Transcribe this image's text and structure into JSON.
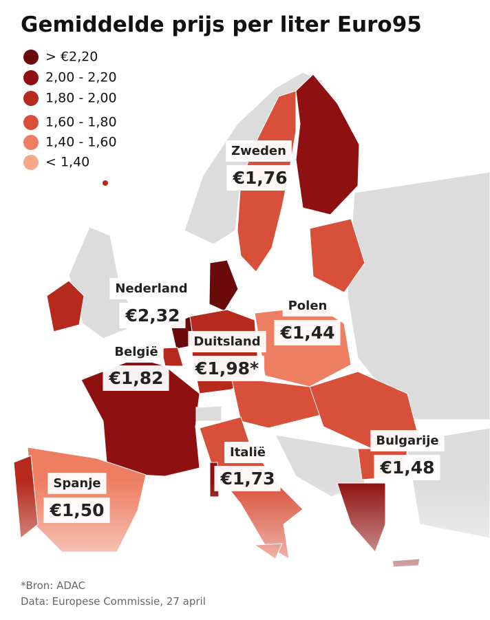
{
  "header": {
    "title": "Gemiddelde prijs per liter Euro95"
  },
  "legend": {
    "items": [
      "> €2,20",
      "2,00 - 2,20",
      "1,80 - 2,00",
      "1,60 - 1,80",
      "1,40 - 1,60",
      "< 1,40"
    ]
  },
  "labels": [
    {
      "name": "Zweden",
      "price": "€1,76"
    },
    {
      "name": "Nederland",
      "price": "€2,32"
    },
    {
      "name": "België",
      "price": "€1,82"
    },
    {
      "name": "Duitsland",
      "price": "€1,98*"
    },
    {
      "name": "Polen",
      "price": "€1,44"
    },
    {
      "name": "Italië",
      "price": "€1,73"
    },
    {
      "name": "Bulgarije",
      "price": "€1,48"
    },
    {
      "name": "Spanje",
      "price": "€1,50"
    }
  ],
  "footer": {
    "source": "*Bron: ADAC",
    "data": "Data: Europese Commissie, 27 april"
  }
}
